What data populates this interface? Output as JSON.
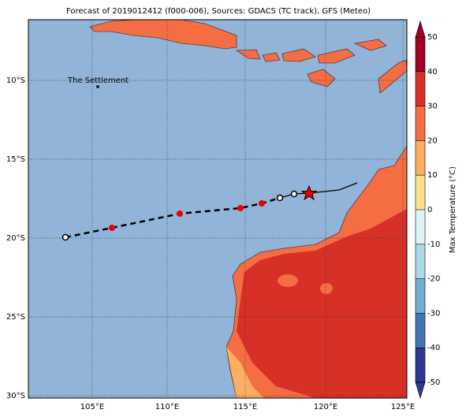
{
  "title": "Forecast of 2019012412 (f000-006), Sources: GDACS (TC track), GFS (Meteo)",
  "map": {
    "lat_labels": [
      "10°S",
      "15°S",
      "20°S",
      "25°S",
      "30°S"
    ],
    "lon_labels": [
      "105°E",
      "110°E",
      "115°E",
      "120°E",
      "125°E"
    ],
    "place_label": "The Settlement"
  },
  "colorbar": {
    "label": "Max Temperature (°C)",
    "ticks": [
      50,
      40,
      30,
      20,
      10,
      0,
      -10,
      -20,
      -30,
      -40,
      -50
    ]
  }
}
